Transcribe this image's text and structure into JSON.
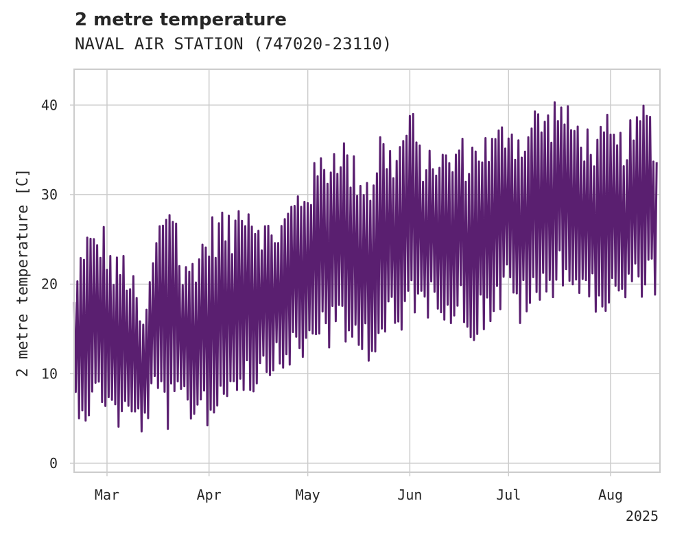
{
  "chart_data": {
    "type": "line",
    "title": "2 metre temperature",
    "subtitle": "NAVAL AIR STATION (747020-23110)",
    "ylabel": "2 metre temperature [C]",
    "xlabel": "",
    "year_label": "2025",
    "xlim": [
      "2025-02-19",
      "2025-08-16"
    ],
    "ylim": [
      -1,
      44
    ],
    "yticks": [
      0,
      10,
      20,
      30,
      40
    ],
    "xticks": [
      {
        "date": "2025-03-01",
        "label": "Mar"
      },
      {
        "date": "2025-04-01",
        "label": "Apr"
      },
      {
        "date": "2025-05-01",
        "label": "May"
      },
      {
        "date": "2025-06-01",
        "label": "Jun"
      },
      {
        "date": "2025-07-01",
        "label": "Jul"
      },
      {
        "date": "2025-08-01",
        "label": "Aug"
      }
    ],
    "grid": true,
    "series_color": "#5a1f70",
    "series": [
      {
        "x": [
          "2025-02-19",
          "2025-02-22",
          "2025-02-25",
          "2025-02-28",
          "2025-03-03",
          "2025-03-06",
          "2025-03-09",
          "2025-03-12",
          "2025-03-15",
          "2025-03-18",
          "2025-03-21",
          "2025-03-24",
          "2025-03-27",
          "2025-03-30",
          "2025-04-02",
          "2025-04-05",
          "2025-04-08",
          "2025-04-11",
          "2025-04-14",
          "2025-04-17",
          "2025-04-20",
          "2025-04-23",
          "2025-04-26",
          "2025-04-29",
          "2025-05-02",
          "2025-05-05",
          "2025-05-08",
          "2025-05-11",
          "2025-05-14",
          "2025-05-17",
          "2025-05-20",
          "2025-05-23",
          "2025-05-26",
          "2025-05-29",
          "2025-06-01",
          "2025-06-04",
          "2025-06-07",
          "2025-06-10",
          "2025-06-13",
          "2025-06-16",
          "2025-06-19",
          "2025-06-22",
          "2025-06-25",
          "2025-06-28",
          "2025-07-01",
          "2025-07-04",
          "2025-07-07",
          "2025-07-10",
          "2025-07-13",
          "2025-07-16",
          "2025-07-19",
          "2025-07-22",
          "2025-07-25",
          "2025-07-28",
          "2025-07-31",
          "2025-08-03",
          "2025-08-06",
          "2025-08-09",
          "2025-08-12",
          "2025-08-15"
        ],
        "min": [
          6,
          4,
          5,
          6,
          4,
          3,
          4,
          3,
          6,
          5,
          2,
          6,
          4,
          5,
          3,
          6,
          7,
          8,
          7,
          9,
          10,
          9,
          11,
          10,
          12,
          14,
          12,
          13,
          11,
          13,
          11,
          12,
          14,
          12,
          17,
          16,
          16,
          17,
          15,
          16,
          13,
          14,
          15,
          16,
          18,
          15,
          16,
          16,
          17,
          20,
          19,
          18,
          16,
          17,
          16,
          17,
          17,
          18,
          19,
          18
        ],
        "max": [
          19,
          27,
          26,
          27,
          23,
          24,
          21,
          16,
          24,
          30,
          32,
          22,
          24,
          26,
          28,
          29,
          27,
          32,
          30,
          28,
          27,
          28,
          30,
          32,
          33,
          35,
          36,
          38,
          35,
          34,
          33,
          38,
          36,
          37,
          41,
          36,
          35,
          36,
          35,
          37,
          36,
          38,
          37,
          38,
          40,
          38,
          39,
          41,
          40,
          42,
          40,
          39,
          38,
          37,
          39,
          37,
          38,
          39,
          42,
          36
        ]
      }
    ]
  }
}
